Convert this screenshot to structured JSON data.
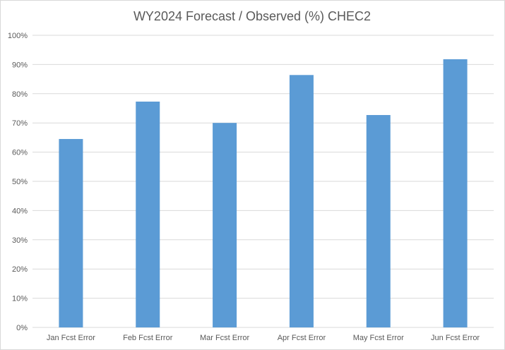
{
  "chart_data": {
    "type": "bar",
    "title": "WY2024 Forecast / Observed (%) CHEC2",
    "xlabel": "",
    "ylabel": "",
    "categories": [
      "Jan Fcst Error",
      "Feb Fcst Error",
      "Mar Fcst Error",
      "Apr Fcst Error",
      "May Fcst Error",
      "Jun Fcst Error"
    ],
    "values": [
      64.5,
      77.3,
      70.0,
      86.4,
      72.7,
      91.8
    ],
    "ylim": [
      0,
      100
    ],
    "yticks": [
      "0%",
      "10%",
      "20%",
      "30%",
      "40%",
      "50%",
      "60%",
      "70%",
      "80%",
      "90%",
      "100%"
    ],
    "grid": "horizontal",
    "legend": "none",
    "bar_color": "#5b9bd5"
  }
}
